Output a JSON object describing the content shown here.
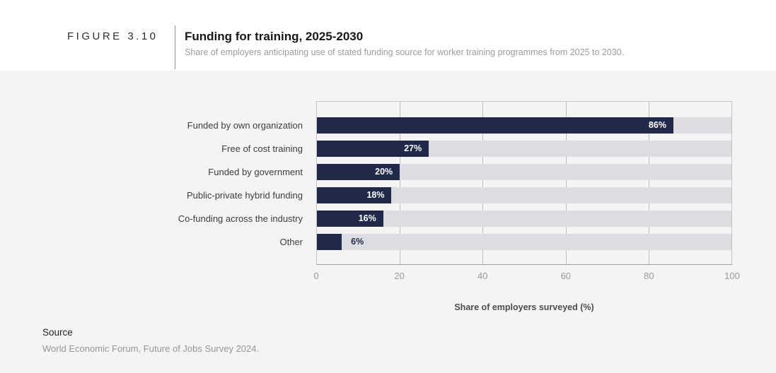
{
  "figure": {
    "tag": "FIGURE 3.10",
    "title": "Funding for training, 2025-2030",
    "subtitle": "Share of employers anticipating use of stated funding source for worker training programmes from 2025 to 2030."
  },
  "chart_data": {
    "type": "bar",
    "orientation": "horizontal",
    "categories": [
      "Funded by own organization",
      "Free of cost training",
      "Funded by government",
      "Public-private hybrid funding",
      "Co-funding across the industry",
      "Other"
    ],
    "values": [
      86,
      27,
      20,
      18,
      16,
      6
    ],
    "value_labels": [
      "86%",
      "27%",
      "20%",
      "18%",
      "16%",
      "6%"
    ],
    "title": "Funding for training, 2025-2030",
    "xlabel": "Share of employers surveyed (%)",
    "ylabel": "",
    "xlim": [
      0,
      100
    ],
    "xticks": [
      0,
      20,
      40,
      60,
      80,
      100
    ],
    "grid": true,
    "legend": "none",
    "bar_color": "#20294a",
    "track_color": "#dcdde2",
    "value_label_inside_color": "#ffffff",
    "value_label_outside_color": "#20294a"
  },
  "source": {
    "label": "Source",
    "text": "World Economic Forum, Future of Jobs Survey 2024."
  }
}
